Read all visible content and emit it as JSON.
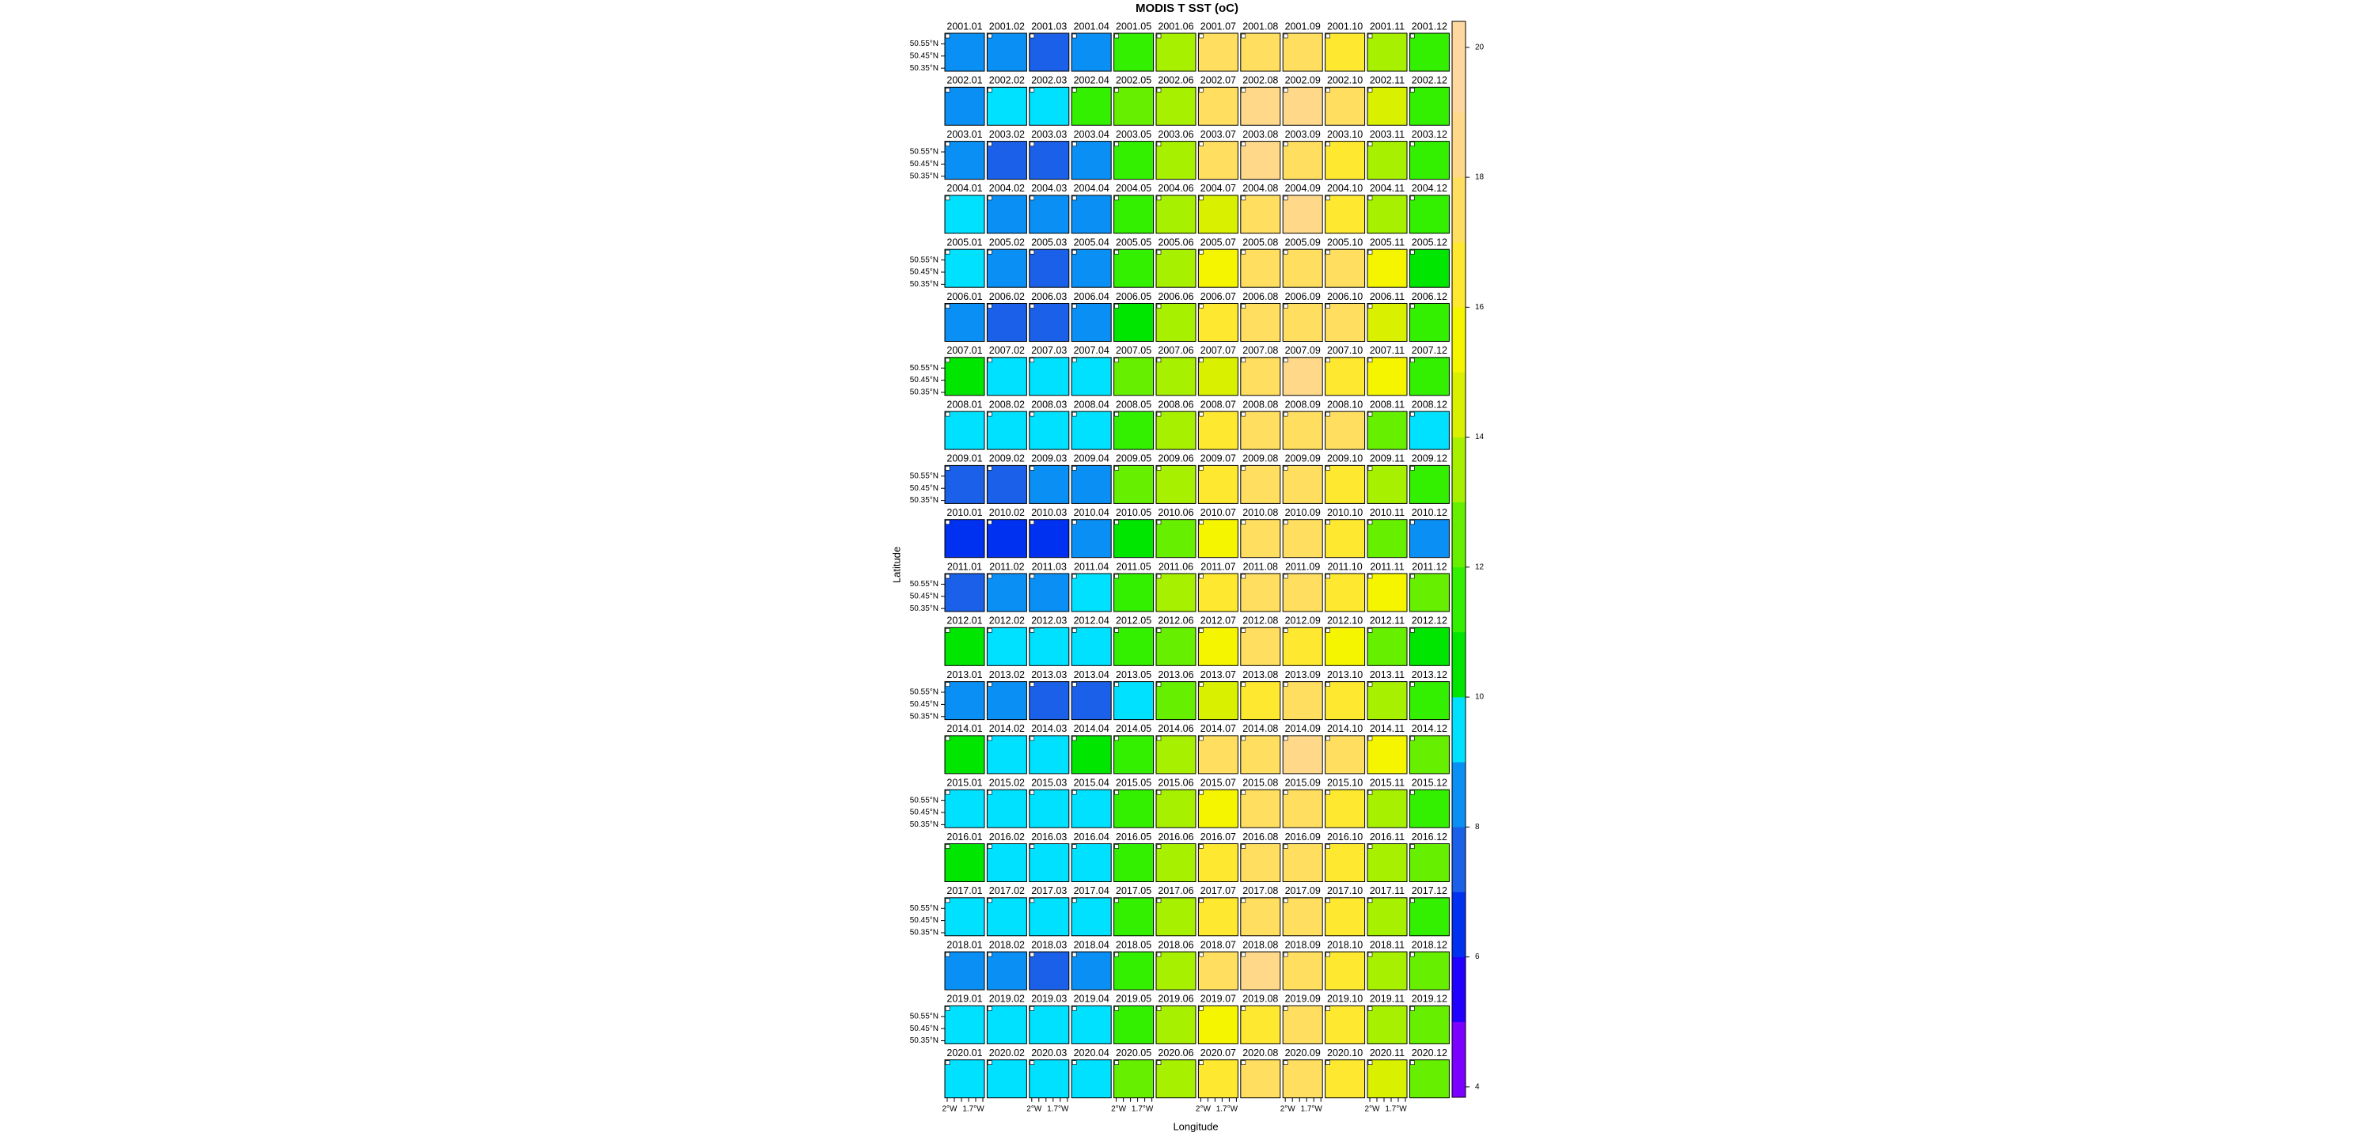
{
  "chart_data": {
    "type": "panel-grid",
    "title": "MODIS T SST (oC)",
    "xlabel": "Longitude",
    "ylabel": "Latitude",
    "columns": 12,
    "lat_labels": [
      "50.55°N",
      "50.45°N",
      "50.35°N"
    ],
    "lon_labels": [
      "2°W",
      "1.7°W"
    ],
    "panel_labels": [
      "2001.01",
      "2001.02",
      "2001.03",
      "2001.04",
      "2001.05",
      "2001.06",
      "2001.07",
      "2001.08",
      "2001.09",
      "2001.10",
      "2001.11",
      "2001.12",
      "2002.01",
      "2002.02",
      "2002.03",
      "2002.04",
      "2002.05",
      "2002.06",
      "2002.07",
      "2002.08",
      "2002.09",
      "2002.10",
      "2002.11",
      "2002.12",
      "2003.01",
      "2003.02",
      "2003.03",
      "2003.04",
      "2003.05",
      "2003.06",
      "2003.07",
      "2003.08",
      "2003.09",
      "2003.10",
      "2003.11",
      "2003.12",
      "2004.01",
      "2004.02",
      "2004.03",
      "2004.04",
      "2004.05",
      "2004.06",
      "2004.07",
      "2004.08",
      "2004.09",
      "2004.10",
      "2004.11",
      "2004.12",
      "2005.01",
      "2005.02",
      "2005.03",
      "2005.04",
      "2005.05",
      "2005.06",
      "2005.07",
      "2005.08",
      "2005.09",
      "2005.10",
      "2005.11",
      "2005.12",
      "2006.01",
      "2006.02",
      "2006.03",
      "2006.04",
      "2006.05",
      "2006.06",
      "2006.07",
      "2006.08",
      "2006.09",
      "2006.10",
      "2006.11",
      "2006.12",
      "2007.01",
      "2007.02",
      "2007.03",
      "2007.04",
      "2007.05",
      "2007.06",
      "2007.07",
      "2007.08",
      "2007.09",
      "2007.10",
      "2007.11",
      "2007.12",
      "2008.01",
      "2008.02",
      "2008.03",
      "2008.04",
      "2008.05",
      "2008.06",
      "2008.07",
      "2008.08",
      "2008.09",
      "2008.10",
      "2008.11",
      "2008.12",
      "2009.01",
      "2009.02",
      "2009.03",
      "2009.04",
      "2009.05",
      "2009.06",
      "2009.07",
      "2009.08",
      "2009.09",
      "2009.10",
      "2009.11",
      "2009.12",
      "2010.01",
      "2010.02",
      "2010.03",
      "2010.04",
      "2010.05",
      "2010.06",
      "2010.07",
      "2010.08",
      "2010.09",
      "2010.10",
      "2010.11",
      "2010.12",
      "2011.01",
      "2011.02",
      "2011.03",
      "2011.04",
      "2011.05",
      "2011.06",
      "2011.07",
      "2011.08",
      "2011.09",
      "2011.10",
      "2011.11",
      "2011.12",
      "2012.01",
      "2012.02",
      "2012.03",
      "2012.04",
      "2012.05",
      "2012.06",
      "2012.07",
      "2012.08",
      "2012.09",
      "2012.10",
      "2012.11",
      "2012.12",
      "2013.01",
      "2013.02",
      "2013.03",
      "2013.04",
      "2013.05",
      "2013.06",
      "2013.07",
      "2013.08",
      "2013.09",
      "2013.10",
      "2013.11",
      "2013.12",
      "2014.01",
      "2014.02",
      "2014.03",
      "2014.04",
      "2014.05",
      "2014.06",
      "2014.07",
      "2014.08",
      "2014.09",
      "2014.10",
      "2014.11",
      "2014.12",
      "2015.01",
      "2015.02",
      "2015.03",
      "2015.04",
      "2015.05",
      "2015.06",
      "2015.07",
      "2015.08",
      "2015.09",
      "2015.10",
      "2015.11",
      "2015.12",
      "2016.01",
      "2016.02",
      "2016.03",
      "2016.04",
      "2016.05",
      "2016.06",
      "2016.07",
      "2016.08",
      "2016.09",
      "2016.10",
      "2016.11",
      "2016.12",
      "2017.01",
      "2017.02",
      "2017.03",
      "2017.04",
      "2017.05",
      "2017.06",
      "2017.07",
      "2017.08",
      "2017.09",
      "2017.10",
      "2017.11",
      "2017.12",
      "2018.01",
      "2018.02",
      "2018.03",
      "2018.04",
      "2018.05",
      "2018.06",
      "2018.07",
      "2018.08",
      "2018.09",
      "2018.10",
      "2018.11",
      "2018.12",
      "2019.01",
      "2019.02",
      "2019.03",
      "2019.04",
      "2019.05",
      "2019.06",
      "2019.07",
      "2019.08",
      "2019.09",
      "2019.10",
      "2019.11",
      "2019.12",
      "2020.01",
      "2020.02",
      "2020.03",
      "2020.04",
      "2020.05",
      "2020.06",
      "2020.07",
      "2020.08",
      "2020.09",
      "2020.10",
      "2020.11",
      "2020.12"
    ],
    "values": [
      8.5,
      8.2,
      7.5,
      8.5,
      11,
      13.5,
      17,
      17.5,
      17.5,
      16,
      13.5,
      11.5,
      8.5,
      9.5,
      9.5,
      11,
      12,
      13.5,
      17,
      18,
      18,
      17,
      14,
      11.5,
      8,
      7,
      7.5,
      8.5,
      11,
      13.5,
      17,
      18,
      17.5,
      16,
      13.5,
      11,
      9.5,
      8.5,
      8.5,
      8.8,
      11,
      13,
      14,
      17,
      18,
      16,
      13.5,
      11.5,
      9.5,
      8.5,
      7.5,
      8.5,
      11,
      13,
      15.5,
      17.5,
      17.5,
      17,
      15.5,
      10,
      8.5,
      7.5,
      7,
      8.5,
      10.5,
      13,
      16,
      17.5,
      17.5,
      17,
      14.5,
      11.5,
      10.5,
      9.5,
      9.5,
      9.8,
      12,
      13.5,
      14,
      17,
      18,
      16,
      15,
      11.5,
      9.5,
      9.5,
      9.5,
      9.5,
      11.5,
      13.5,
      16,
      17.5,
      17.5,
      17,
      12,
      9,
      7,
      7,
      8,
      8.8,
      12,
      13.5,
      16,
      17,
      17,
      16.5,
      13.5,
      11,
      6.8,
      6.5,
      6.5,
      8,
      10,
      12.5,
      15,
      17,
      17,
      16.5,
      12,
      8.5,
      7,
      8,
      8.5,
      9.8,
      11.5,
      13.5,
      16.5,
      17,
      17,
      16.5,
      15,
      12,
      10.5,
      9,
      9,
      9.5,
      11.5,
      12.5,
      15.5,
      17,
      16.5,
      15.5,
      12,
      10.8,
      8.8,
      8,
      7,
      7,
      9.8,
      12,
      14,
      16.5,
      17.5,
      16,
      13,
      11,
      10.5,
      9.8,
      9.8,
      10.5,
      11.5,
      13.5,
      17,
      17.5,
      18,
      17,
      15,
      12,
      9.5,
      9,
      9,
      9.5,
      11,
      13,
      15.5,
      17,
      17.5,
      16,
      13.5,
      11.5,
      10.5,
      9.8,
      9,
      9.5,
      11.5,
      13.5,
      16.5,
      17,
      17.5,
      16,
      13.5,
      12,
      9.5,
      9,
      9,
      9.8,
      11.5,
      13.5,
      16.5,
      17,
      17,
      16,
      13.5,
      11.5,
      8,
      8.5,
      7.5,
      8.5,
      11.5,
      13.5,
      17,
      18,
      17.5,
      16.5,
      13.5,
      12,
      9.5,
      9.5,
      9.5,
      9.8,
      11.5,
      13.5,
      15.5,
      16.5,
      17,
      16,
      13.5,
      12,
      9.8,
      9,
      9.5,
      9.5,
      12,
      13.5,
      16.5,
      17,
      17.5,
      16,
      14,
      12
    ],
    "colorbar": {
      "ylim": [
        3.84,
        20.4
      ],
      "yticks": [
        4,
        6,
        8,
        10,
        12,
        14,
        16,
        18,
        20
      ],
      "breaks": [
        4,
        5,
        6,
        7,
        8,
        9,
        10,
        11,
        12,
        13,
        14,
        15,
        16,
        17,
        18,
        19,
        20
      ],
      "colors": [
        "#7b00ff",
        "#2200ff",
        "#0030f0",
        "#1a60e8",
        "#0a90f5",
        "#00e0ff",
        "#00e600",
        "#33f000",
        "#66f000",
        "#a6f000",
        "#d9f000",
        "#f5f500",
        "#ffe830",
        "#ffde60",
        "#ffd88a",
        "#ffd8a0"
      ]
    }
  }
}
